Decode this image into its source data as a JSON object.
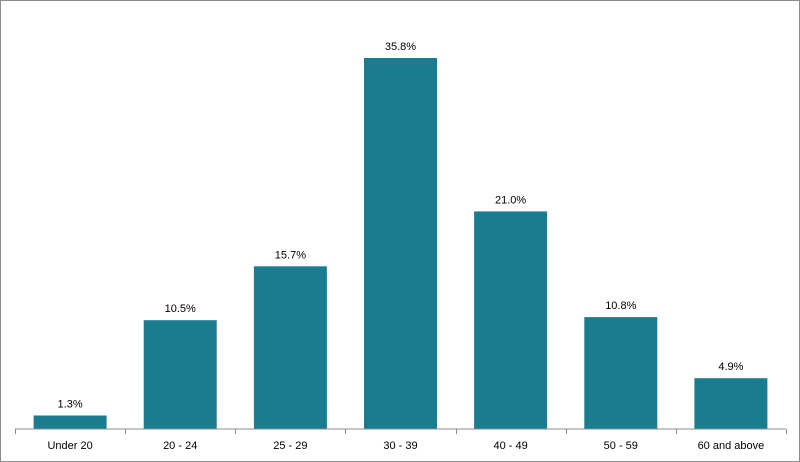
{
  "chart_data": {
    "type": "bar",
    "categories": [
      "Under 20",
      "20 - 24",
      "25 - 29",
      "30 - 39",
      "40 - 49",
      "50 - 59",
      "60 and above"
    ],
    "values": [
      1.3,
      10.5,
      15.7,
      35.8,
      21.0,
      10.8,
      4.9
    ],
    "data_labels": [
      "1.3%",
      "10.5%",
      "15.7%",
      "35.8%",
      "21.0%",
      "10.8%",
      "4.9%"
    ],
    "ylim": [
      0,
      35.8
    ],
    "grid": false,
    "legend": "none",
    "bar_color": "#1a7d8f",
    "axis_color": "#8c8c8c"
  }
}
